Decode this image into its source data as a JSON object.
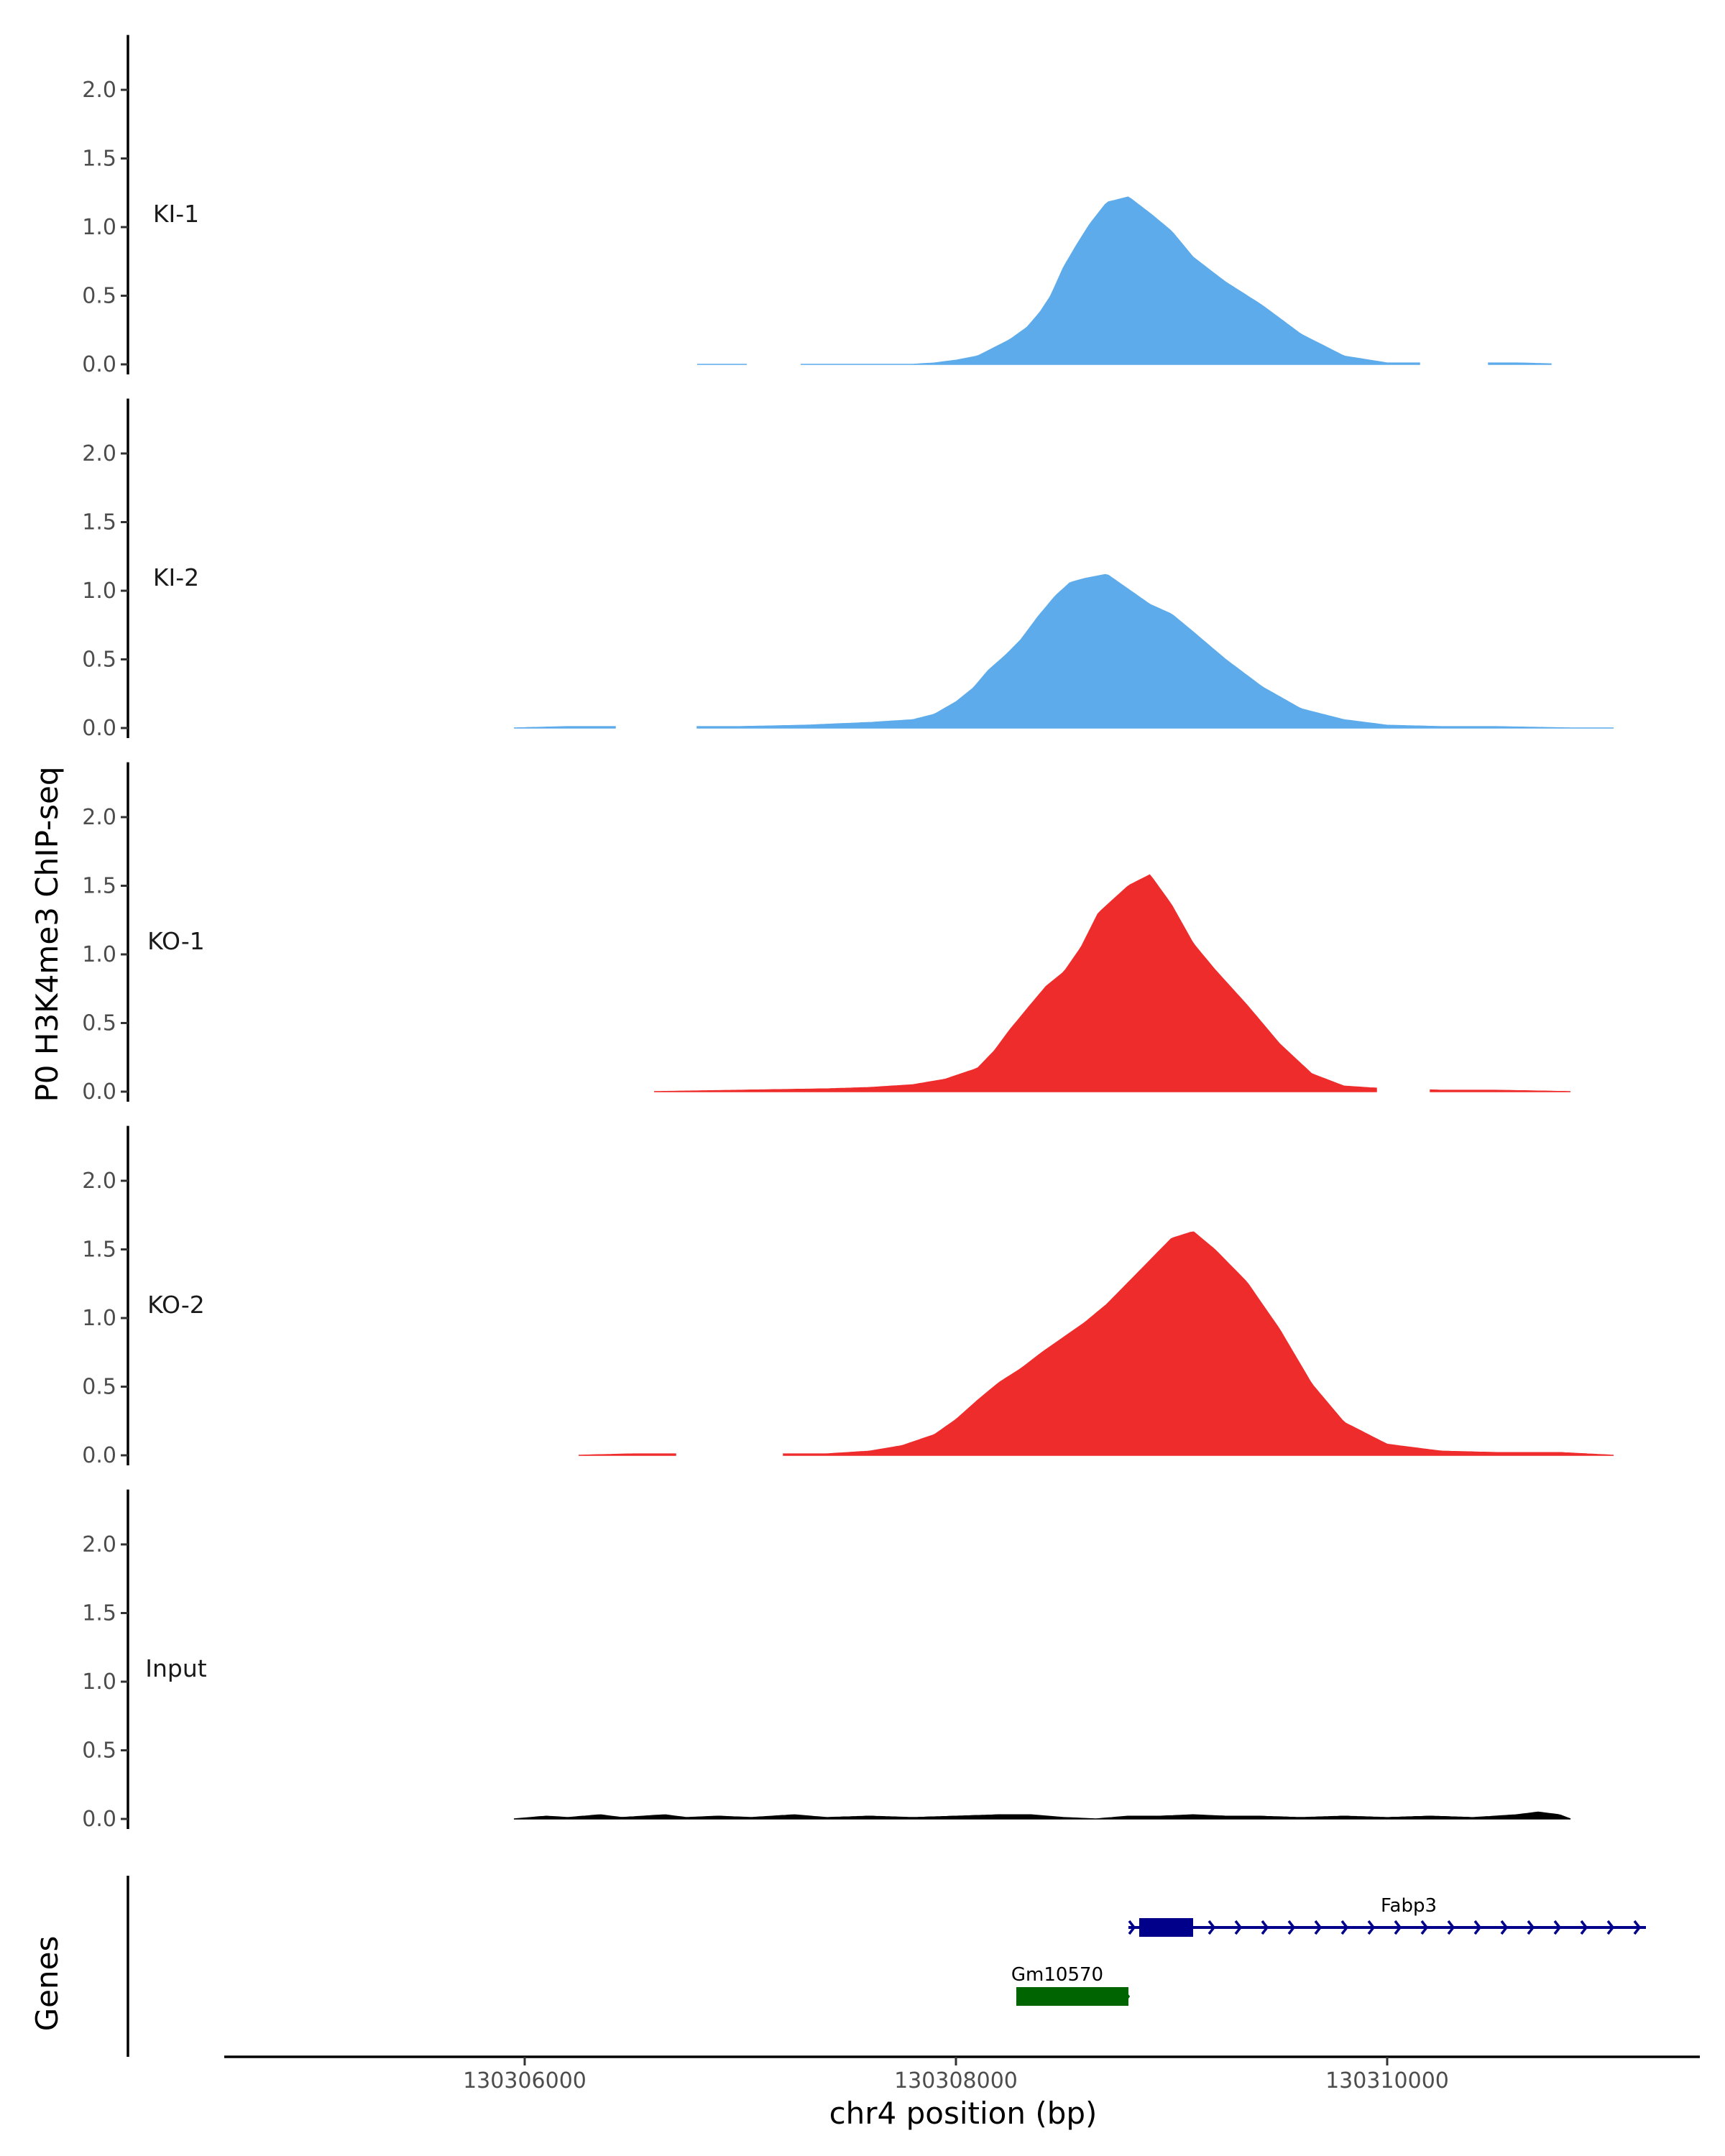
{
  "chart_data": {
    "type": "area",
    "ylabel": "P0 H3K4me3 ChIP-seq",
    "xlabel": "chr4 position (bp)",
    "xlim": [
      130304600,
      130311450
    ],
    "ylim": [
      -0.05,
      2.4
    ],
    "y_ticks": [
      "0.0",
      "0.5",
      "1.0",
      "1.5",
      "2.0"
    ],
    "x_ticks": [
      {
        "value": 130306000,
        "label": "130306000"
      },
      {
        "value": 130308000,
        "label": "130308000"
      },
      {
        "value": 130310000,
        "label": "130310000"
      }
    ],
    "tracks": [
      {
        "name": "KI-1",
        "color": "#5dabeb",
        "x": [
          130307800,
          130307900,
          130308000,
          130308100,
          130308150,
          130308250,
          130308330,
          130308390,
          130308440,
          130308500,
          130308560,
          130308620,
          130308700,
          130308800,
          130308900,
          130309000,
          130309100,
          130309250,
          130309420,
          130309600,
          130309800,
          130310000,
          130310250,
          130310600,
          130310850
        ],
        "y": [
          0.0,
          0.01,
          0.03,
          0.06,
          0.1,
          0.18,
          0.27,
          0.38,
          0.5,
          0.71,
          0.87,
          1.02,
          1.18,
          1.22,
          1.1,
          0.97,
          0.78,
          0.6,
          0.43,
          0.22,
          0.06,
          0.01,
          0.01,
          0.01,
          0.0
        ],
        "segments": [
          [
            130306800,
            130307030
          ],
          [
            130307280,
            130310150
          ],
          [
            130310470,
            130310760
          ]
        ]
      },
      {
        "name": "KI-2",
        "color": "#5dabeb",
        "x": [
          130305950,
          130306200,
          130306400,
          130306700,
          130307000,
          130307300,
          130307600,
          130307800,
          130307900,
          130308000,
          130308080,
          130308150,
          130308230,
          130308300,
          130308380,
          130308460,
          130308530,
          130308600,
          130308700,
          130308800,
          130308900,
          130309000,
          130309100,
          130309250,
          130309420,
          130309600,
          130309800,
          130310000,
          130310250,
          130310500,
          130310850
        ],
        "y": [
          0.0,
          0.01,
          0.01,
          0.01,
          0.01,
          0.02,
          0.04,
          0.06,
          0.1,
          0.19,
          0.29,
          0.42,
          0.53,
          0.64,
          0.81,
          0.96,
          1.06,
          1.09,
          1.12,
          1.01,
          0.9,
          0.83,
          0.7,
          0.5,
          0.3,
          0.14,
          0.06,
          0.02,
          0.01,
          0.01,
          0.0
        ],
        "segments": [
          [
            130305950,
            130306420
          ],
          [
            130306800,
            130311050
          ]
        ]
      },
      {
        "name": "KO-1",
        "color": "#ef2c2c",
        "x": [
          130306600,
          130307000,
          130307400,
          130307600,
          130307800,
          130307950,
          130308100,
          130308180,
          130308250,
          130308350,
          130308420,
          130308500,
          130308580,
          130308660,
          130308800,
          130308900,
          130309000,
          130309100,
          130309200,
          130309350,
          130309500,
          130309650,
          130309800,
          130310000,
          130310250,
          130310500,
          130310850
        ],
        "y": [
          0.0,
          0.01,
          0.02,
          0.03,
          0.05,
          0.09,
          0.17,
          0.3,
          0.45,
          0.64,
          0.77,
          0.87,
          1.05,
          1.3,
          1.5,
          1.58,
          1.36,
          1.08,
          0.89,
          0.63,
          0.35,
          0.13,
          0.04,
          0.02,
          0.01,
          0.01,
          0.0
        ],
        "segments": [
          [
            130306600,
            130309950
          ],
          [
            130310200,
            130310850
          ]
        ]
      },
      {
        "name": "KO-2",
        "color": "#ef2c2c",
        "x": [
          130306250,
          130306500,
          130306700,
          130307200,
          130307400,
          130307600,
          130307750,
          130307900,
          130308000,
          130308100,
          130308200,
          130308300,
          130308400,
          130308500,
          130308600,
          130308700,
          130308800,
          130308900,
          130309000,
          130309100,
          130309200,
          130309350,
          130309500,
          130309650,
          130309800,
          130310000,
          130310250,
          130310500,
          130310800,
          130311050
        ],
        "y": [
          0.0,
          0.01,
          0.01,
          0.01,
          0.01,
          0.03,
          0.07,
          0.15,
          0.26,
          0.4,
          0.53,
          0.63,
          0.75,
          0.86,
          0.97,
          1.1,
          1.26,
          1.42,
          1.58,
          1.63,
          1.5,
          1.26,
          0.92,
          0.52,
          0.24,
          0.08,
          0.03,
          0.02,
          0.02,
          0.0
        ],
        "segments": [
          [
            130306250,
            130306700
          ],
          [
            130307200,
            130311050
          ]
        ]
      },
      {
        "name": "Input",
        "color": "#000000",
        "x": [
          130305950,
          130306100,
          130306200,
          130306350,
          130306450,
          130306650,
          130306750,
          130306900,
          130307050,
          130307250,
          130307400,
          130307600,
          130307800,
          130308000,
          130308200,
          130308350,
          130308500,
          130308650,
          130308800,
          130308950,
          130309100,
          130309250,
          130309400,
          130309600,
          130309800,
          130310000,
          130310200,
          130310400,
          130310600,
          130310700,
          130310800,
          130310850
        ],
        "y": [
          0.0,
          0.02,
          0.01,
          0.03,
          0.01,
          0.03,
          0.01,
          0.02,
          0.01,
          0.03,
          0.01,
          0.02,
          0.01,
          0.02,
          0.03,
          0.03,
          0.01,
          0.0,
          0.02,
          0.02,
          0.03,
          0.02,
          0.02,
          0.01,
          0.02,
          0.01,
          0.02,
          0.01,
          0.03,
          0.05,
          0.03,
          0.0
        ],
        "segments": [
          [
            130305950,
            130310850
          ]
        ]
      }
    ],
    "genes_label": "Genes",
    "genes": [
      {
        "name": "Fabp3",
        "start": 130308800,
        "end": 130311200,
        "thick_start": 130308850,
        "thick_end": 130309100,
        "strand": "+",
        "color": "#00008b",
        "row": 0,
        "label_x": 130310100
      },
      {
        "name": "Gm10570",
        "start": 130308280,
        "end": 130308800,
        "thick_start": 130308280,
        "thick_end": 130308800,
        "strand": "+",
        "color": "#006400",
        "row": 1,
        "label_x": 130308470
      }
    ]
  }
}
